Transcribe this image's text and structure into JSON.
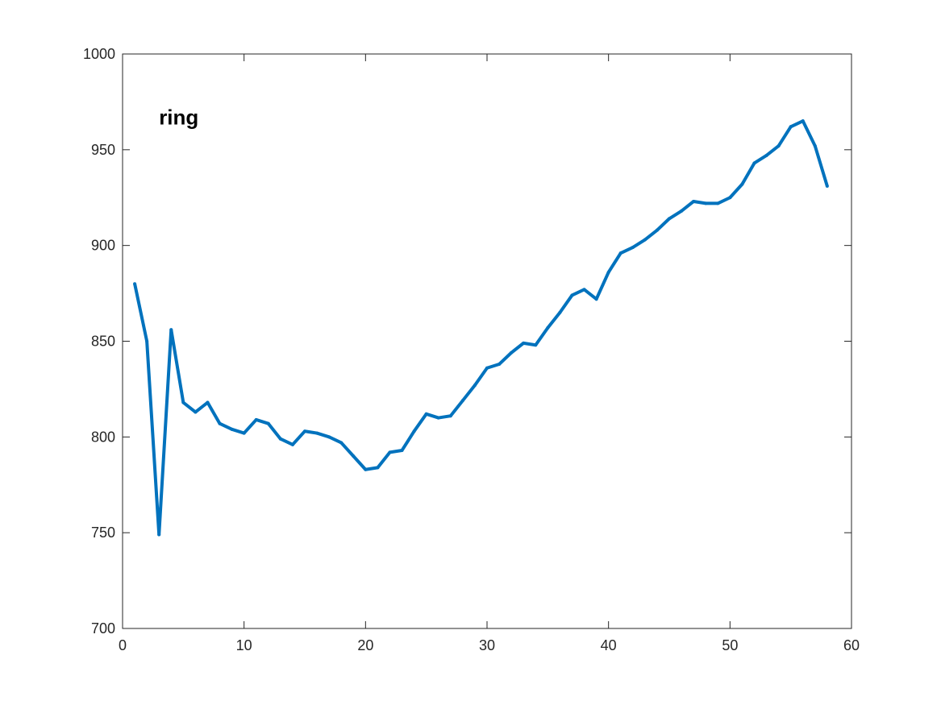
{
  "chart_data": {
    "type": "line",
    "title": "",
    "xlabel": "",
    "ylabel": "",
    "xlim": [
      0,
      60
    ],
    "ylim": [
      700,
      1000
    ],
    "xticks": [
      0,
      10,
      20,
      30,
      40,
      50,
      60
    ],
    "yticks": [
      700,
      750,
      800,
      850,
      900,
      950,
      1000
    ],
    "xtick_labels": [
      "0",
      "10",
      "20",
      "30",
      "40",
      "50",
      "60"
    ],
    "ytick_labels": [
      "700",
      "750",
      "800",
      "850",
      "900",
      "950",
      "1000"
    ],
    "grid": false,
    "annotation": {
      "text": "ring",
      "x": 3,
      "y": 967
    },
    "series": [
      {
        "color": "#0072bd",
        "x": [
          1,
          2,
          3,
          4,
          5,
          6,
          7,
          8,
          9,
          10,
          11,
          12,
          13,
          14,
          15,
          16,
          17,
          18,
          19,
          20,
          21,
          22,
          23,
          24,
          25,
          26,
          27,
          28,
          29,
          30,
          31,
          32,
          33,
          34,
          35,
          36,
          37,
          38,
          39,
          40,
          41,
          42,
          43,
          44,
          45,
          46,
          47,
          48,
          49,
          50,
          51,
          52,
          53,
          54,
          55,
          56,
          57,
          58
        ],
        "values": [
          880,
          850,
          749,
          856,
          818,
          813,
          818,
          807,
          804,
          802,
          809,
          807,
          799,
          796,
          803,
          802,
          800,
          797,
          790,
          783,
          784,
          792,
          793,
          803,
          812,
          810,
          811,
          819,
          827,
          836,
          838,
          844,
          849,
          848,
          857,
          865,
          874,
          877,
          872,
          886,
          896,
          899,
          903,
          908,
          914,
          918,
          923,
          922,
          922,
          925,
          932,
          943,
          947,
          952,
          962,
          965,
          952,
          931
        ]
      }
    ]
  }
}
